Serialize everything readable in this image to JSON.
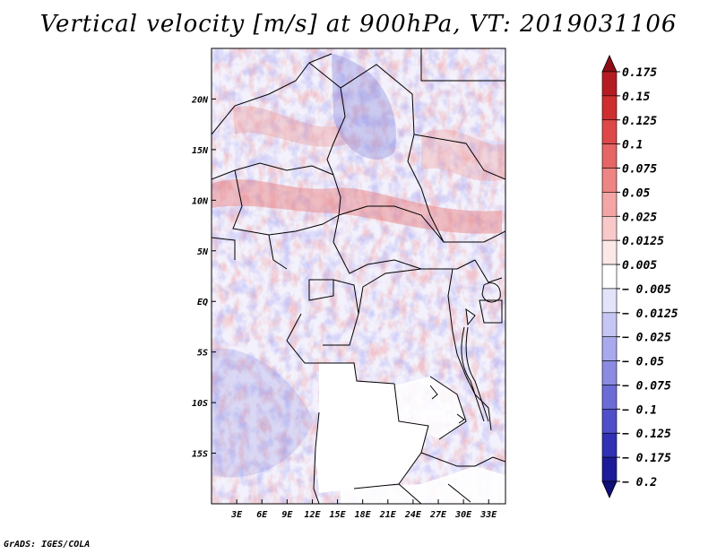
{
  "title": "Vertical velocity [m/s] at 900hPa, VT: 2019031106",
  "credit": "GrADS: IGES/COLA",
  "map": {
    "lon_range": [
      0,
      35
    ],
    "lat_range": [
      -20,
      25
    ],
    "x_ticks": [
      "3E",
      "6E",
      "9E",
      "12E",
      "15E",
      "18E",
      "21E",
      "24E",
      "27E",
      "30E",
      "33E"
    ],
    "y_ticks": [
      "20N",
      "15N",
      "10N",
      "5N",
      "EQ",
      "5S",
      "10S",
      "15S"
    ],
    "field": "vertical velocity",
    "units": "m/s",
    "level": "900hPa"
  },
  "colorbar": {
    "labels": [
      "0.175",
      "0.15",
      "0.125",
      "0.1",
      "0.075",
      "0.05",
      "0.025",
      "0.0125",
      "0.005",
      "− 0.005",
      "− 0.0125",
      "− 0.025",
      "− 0.05",
      "− 0.075",
      "− 0.1",
      "− 0.125",
      "− 0.175",
      "− 0.2"
    ],
    "colors": [
      "#8e0d16",
      "#b51c22",
      "#cf2e2e",
      "#de4848",
      "#e66565",
      "#ee8484",
      "#f4a6a6",
      "#f9c9c9",
      "#fde8e8",
      "#ffffff",
      "#e3e3fa",
      "#c6c6f4",
      "#a9a9ee",
      "#8b8be3",
      "#6c6cd7",
      "#4f4fc9",
      "#3131b5",
      "#1c1c9a",
      "#10107a"
    ]
  },
  "colors": {
    "land_blank": "#ffffff",
    "boundary": "#000000"
  }
}
